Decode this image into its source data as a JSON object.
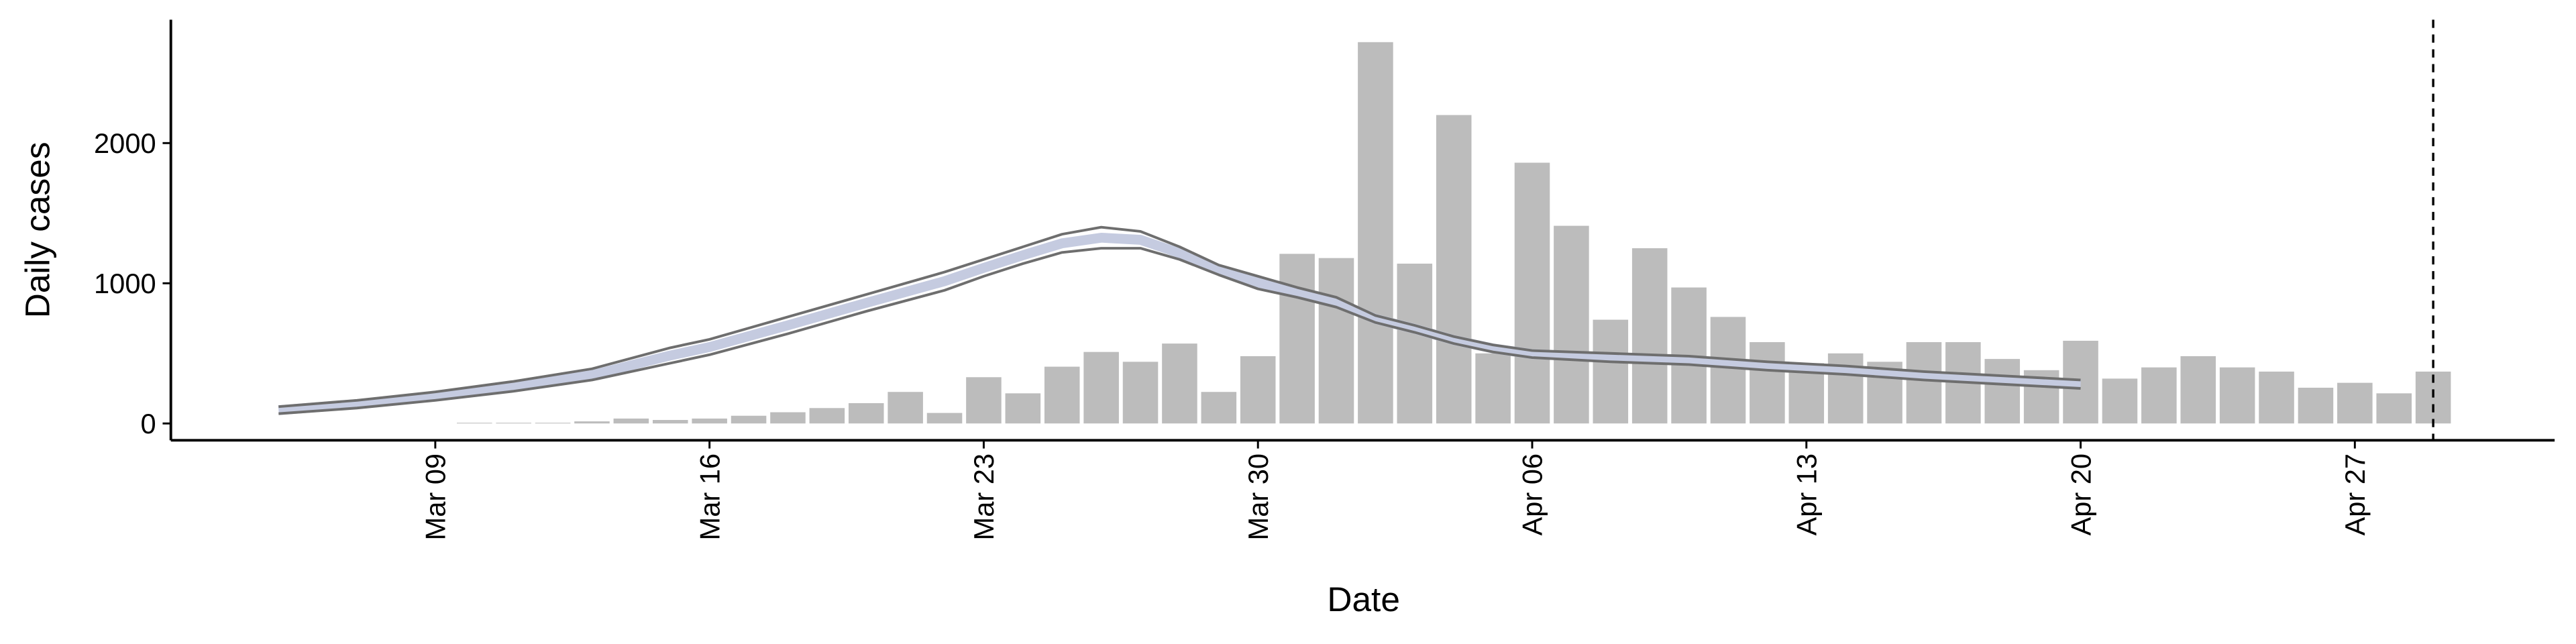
{
  "chart_data": {
    "type": "bar",
    "x_label": "Date",
    "y_label": "Daily cases",
    "xlim": [
      2.25,
      63.1
    ],
    "ylim": [
      -120,
      2880
    ],
    "xticks": [
      {
        "value": 9,
        "label": "Mar 09"
      },
      {
        "value": 16,
        "label": "Mar 16"
      },
      {
        "value": 23,
        "label": "Mar 23"
      },
      {
        "value": 30,
        "label": "Mar 30"
      },
      {
        "value": 37,
        "label": "Apr 06"
      },
      {
        "value": 44,
        "label": "Apr 13"
      },
      {
        "value": 51,
        "label": "Apr 20"
      },
      {
        "value": 58,
        "label": "Apr 27"
      }
    ],
    "yticks": [
      0,
      1000,
      2000
    ],
    "vline": 60,
    "series": [
      {
        "type": "bar",
        "color": "#bcbcbc",
        "x": [
          10,
          11,
          12,
          13,
          14,
          15,
          16,
          17,
          18,
          19,
          20,
          21,
          22,
          23,
          24,
          25,
          26,
          27,
          28,
          29,
          30,
          31,
          32,
          33,
          34,
          35,
          36,
          37,
          38,
          39,
          40,
          41,
          42,
          43,
          44,
          45,
          46,
          47,
          48,
          49,
          50,
          51,
          52,
          53,
          54,
          55,
          56,
          57,
          58,
          59,
          60
        ],
        "values": [
          5,
          5,
          5,
          15,
          35,
          25,
          35,
          55,
          80,
          110,
          145,
          225,
          75,
          330,
          215,
          405,
          510,
          440,
          570,
          225,
          480,
          1210,
          1180,
          2720,
          1140,
          2200,
          500,
          1860,
          1410,
          740,
          1250,
          970,
          760,
          580,
          430,
          500,
          440,
          580,
          580,
          460,
          380,
          590,
          320,
          400,
          480,
          400,
          370,
          255,
          290,
          215,
          370
        ]
      },
      {
        "type": "line",
        "color": "#c5cbe0",
        "width": 6,
        "x": [
          5,
          7,
          9,
          11,
          13,
          15,
          16,
          18,
          20,
          22,
          23,
          24,
          25,
          26,
          27,
          28,
          29,
          30,
          31,
          32,
          33,
          34,
          35,
          36,
          37,
          39,
          41,
          43,
          45,
          47,
          49,
          51
        ],
        "values": [
          95,
          138,
          193,
          260,
          345,
          485,
          545,
          700,
          860,
          1015,
          1110,
          1200,
          1285,
          1325,
          1310,
          1215,
          1095,
          1005,
          935,
          865,
          745,
          675,
          595,
          535,
          495,
          470,
          450,
          410,
          380,
          340,
          310,
          280
        ]
      },
      {
        "type": "line",
        "color": "#6e6e6e",
        "width": 1.6,
        "x": [
          5,
          7,
          9,
          11,
          13,
          15,
          16,
          18,
          20,
          22,
          23,
          24,
          25,
          26,
          27,
          28,
          29,
          30,
          31,
          32,
          33,
          34,
          35,
          36,
          37,
          39,
          41,
          43,
          45,
          47,
          49,
          51
        ],
        "values": [
          120,
          165,
          225,
          300,
          390,
          540,
          600,
          760,
          920,
          1080,
          1170,
          1260,
          1350,
          1400,
          1370,
          1260,
          1130,
          1050,
          970,
          900,
          770,
          700,
          620,
          560,
          520,
          500,
          480,
          440,
          410,
          370,
          340,
          310
        ]
      },
      {
        "type": "line",
        "color": "#6e6e6e",
        "width": 1.6,
        "x": [
          5,
          7,
          9,
          11,
          13,
          15,
          16,
          18,
          20,
          22,
          23,
          24,
          25,
          26,
          27,
          28,
          29,
          30,
          31,
          32,
          33,
          34,
          35,
          36,
          37,
          39,
          41,
          43,
          45,
          47,
          49,
          51
        ],
        "values": [
          70,
          110,
          165,
          230,
          310,
          430,
          490,
          640,
          800,
          950,
          1050,
          1140,
          1220,
          1250,
          1250,
          1170,
          1060,
          960,
          900,
          830,
          720,
          650,
          570,
          510,
          470,
          440,
          420,
          380,
          350,
          310,
          280,
          250
        ]
      }
    ]
  }
}
